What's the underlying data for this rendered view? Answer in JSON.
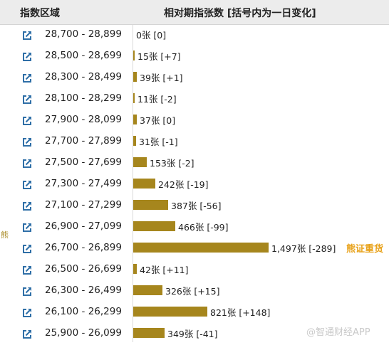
{
  "header": {
    "range_label": "指数区域",
    "chart_label": "相对期指张数 [括号内为一日变化]"
  },
  "side_label": "熊",
  "watermark": "@智通财经APP",
  "colors": {
    "bar": "#a6861d",
    "annotation": "#e8a21a",
    "icon": "#2f6fa7"
  },
  "link_icon": "external-link-icon",
  "chart_data": {
    "type": "bar",
    "orientation": "horizontal",
    "unit": "张",
    "categories": [
      "28,700 - 28,899",
      "28,500 - 28,699",
      "28,300 - 28,499",
      "28,100 - 28,299",
      "27,900 - 28,099",
      "27,700 - 27,899",
      "27,500 - 27,699",
      "27,300 - 27,499",
      "27,100 - 27,299",
      "26,900 - 27,099",
      "26,700 - 26,899",
      "26,500 - 26,699",
      "26,300 - 26,499",
      "26,100 - 26,299",
      "25,900 - 26,099"
    ],
    "values": [
      0,
      15,
      39,
      11,
      37,
      31,
      153,
      242,
      387,
      466,
      1497,
      42,
      326,
      821,
      349
    ],
    "labels": [
      "0张 [0]",
      "15张 [+7]",
      "39张 [+1]",
      "11张 [-2]",
      "37张 [0]",
      "31张 [-1]",
      "153张 [-2]",
      "242张 [-19]",
      "387张 [-56]",
      "466张 [-99]",
      "1,497张 [-289]",
      "42张 [+11]",
      "326张 [+15]",
      "821张 [+148]",
      "349张 [-41]"
    ],
    "changes": [
      0,
      7,
      1,
      -2,
      0,
      -1,
      -2,
      -19,
      -56,
      -99,
      -289,
      11,
      15,
      148,
      -41
    ],
    "annotations": [
      {
        "row": 10,
        "text": "熊证重货"
      }
    ],
    "xlim": [
      0,
      1497
    ]
  }
}
